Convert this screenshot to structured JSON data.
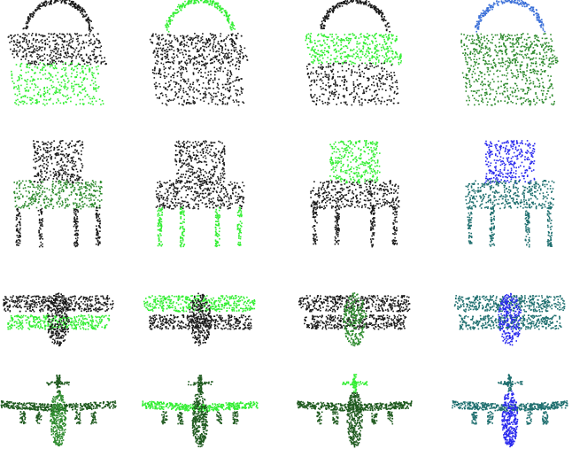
{
  "palette": {
    "black": "#1a1a1a",
    "dark_green": "#1f5a1f",
    "mid_green": "#2e8b2e",
    "bright_green": "#33ee33",
    "blue": "#2a2aee",
    "teal": "#1f6f6f",
    "sky_blue": "#3a6fd8"
  },
  "grid": {
    "rows": [
      "basket",
      "chair",
      "biplane",
      "airplane"
    ],
    "columns": 4
  },
  "cells": [
    {
      "shape": "basket",
      "base": "black",
      "accent": "bright_green",
      "accent_part": "bottom"
    },
    {
      "shape": "basket",
      "base": "black",
      "accent": "bright_green",
      "accent_part": "handle"
    },
    {
      "shape": "basket",
      "base": "black",
      "accent": "bright_green",
      "accent_part": "top"
    },
    {
      "shape": "basket",
      "base": "mid_green",
      "accent": "sky_blue",
      "accent_part": "handle"
    },
    {
      "shape": "chair",
      "base": "black",
      "accent": "mid_green",
      "accent_part": "seat"
    },
    {
      "shape": "chair",
      "base": "black",
      "accent": "bright_green",
      "accent_part": "legs"
    },
    {
      "shape": "chair",
      "base": "black",
      "accent": "bright_green",
      "accent_part": "back"
    },
    {
      "shape": "chair",
      "base": "teal",
      "accent": "blue",
      "accent_part": "back"
    },
    {
      "shape": "biplane",
      "base": "black",
      "accent": "bright_green",
      "accent_part": "lower_wing"
    },
    {
      "shape": "biplane",
      "base": "black",
      "accent": "bright_green",
      "accent_part": "upper_wing"
    },
    {
      "shape": "biplane",
      "base": "black",
      "accent": "mid_green",
      "accent_part": "fuselage"
    },
    {
      "shape": "biplane",
      "base": "teal",
      "accent": "blue",
      "accent_part": "fuselage"
    },
    {
      "shape": "airplane",
      "base": "dark_green",
      "accent": "mid_green",
      "accent_part": "fuselage"
    },
    {
      "shape": "airplane",
      "base": "dark_green",
      "accent": "bright_green",
      "accent_part": "wings"
    },
    {
      "shape": "airplane",
      "base": "dark_green",
      "accent": "bright_green",
      "accent_part": "tail"
    },
    {
      "shape": "airplane",
      "base": "teal",
      "accent": "blue",
      "accent_part": "fuselage"
    }
  ]
}
